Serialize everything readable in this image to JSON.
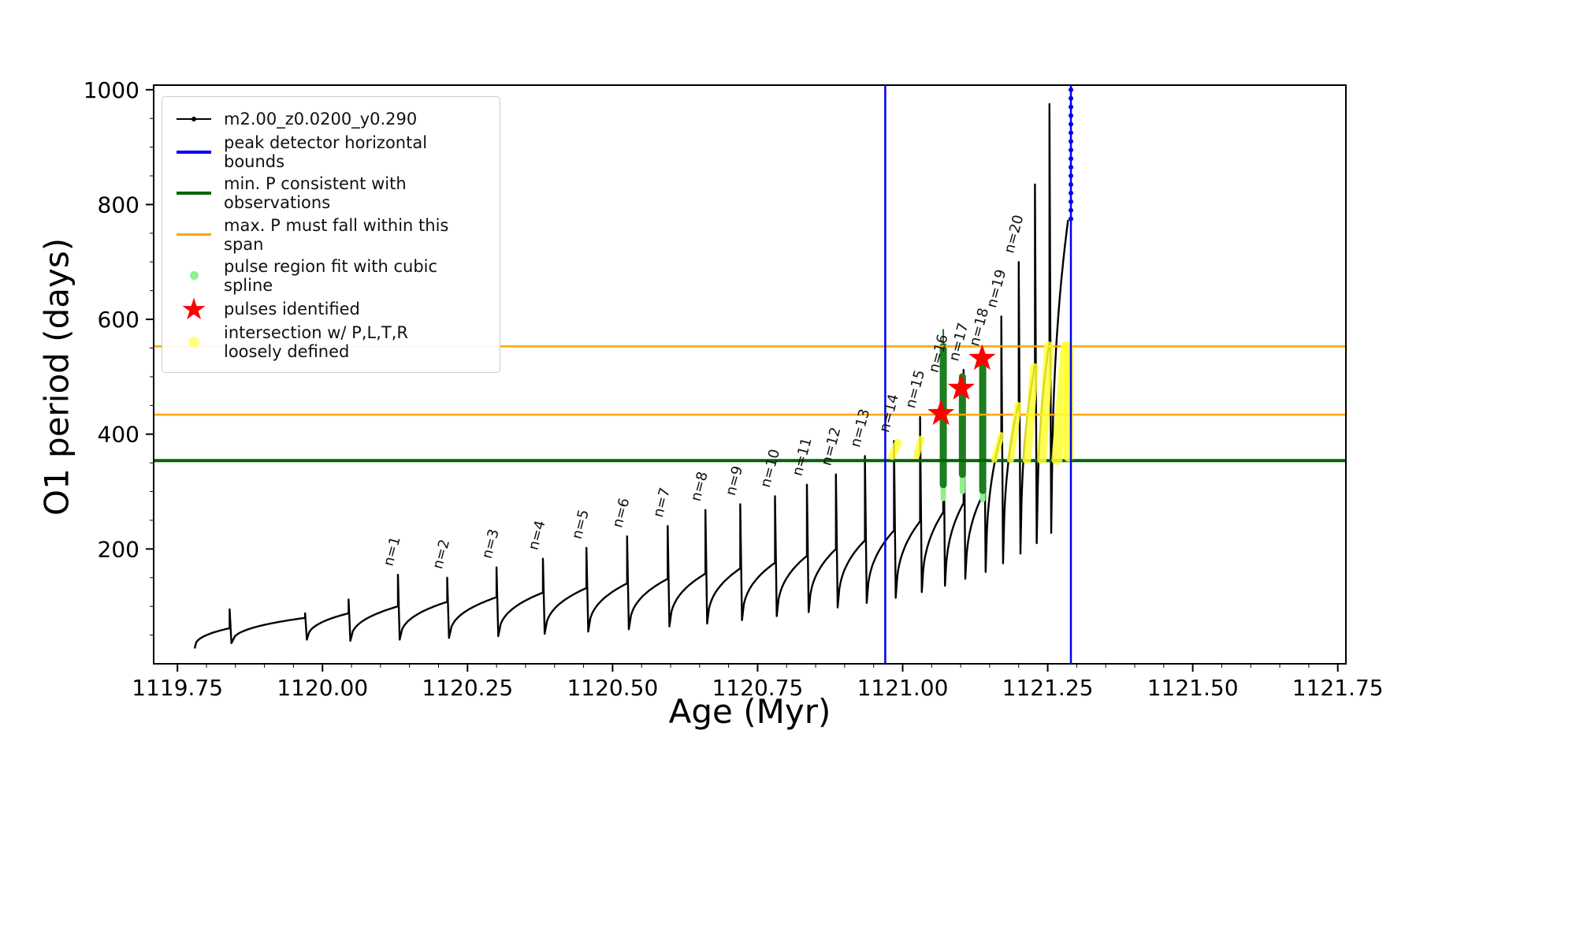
{
  "chart_data": {
    "type": "line",
    "title": "",
    "xlabel": "Age (Myr)",
    "ylabel": "O1 period (days)",
    "xlim": [
      1119.709,
      1121.764
    ],
    "ylim": [
      0,
      1008
    ],
    "xtick_values": [
      1119.75,
      1120.0,
      1120.25,
      1120.5,
      1120.75,
      1121.0,
      1121.25,
      1121.5,
      1121.75
    ],
    "xtick_labels": [
      "1119.75",
      "1120.00",
      "1120.25",
      "1120.50",
      "1120.75",
      "1121.00",
      "1121.25",
      "1121.50",
      "1121.75"
    ],
    "ytick_values": [
      200,
      400,
      600,
      800,
      1000
    ],
    "ytick_labels": [
      "200",
      "400",
      "600",
      "800",
      "1000"
    ],
    "x_minor_step": 0.05,
    "y_minor_step": 50,
    "grid": false,
    "legend_position": "upper left",
    "colors": {
      "track": "#000000",
      "peak_bounds": "#0000ee",
      "min_p_line": "#006400",
      "max_p_span": "#ffa500",
      "spline_fit_light": "#90ee90",
      "spline_fit_dense": "#1e7d1e",
      "pulse_star": "#ff0000",
      "intersection": "#ffff33"
    },
    "series": {
      "name": "m2.00_z0.0200_y0.290",
      "track_start": {
        "x": 1119.78,
        "y": 28
      },
      "teeth": [
        {
          "x": 1119.84,
          "y0": 28,
          "y1": 62,
          "peak": 95
        },
        {
          "x": 1119.97,
          "y0": 36,
          "y1": 80,
          "peak": 88
        },
        {
          "x": 1120.045,
          "y0": 42,
          "y1": 88,
          "peak": 112
        },
        {
          "x": 1120.13,
          "y0": 40,
          "y1": 100,
          "peak": 155,
          "label": "n=1"
        },
        {
          "x": 1120.215,
          "y0": 42,
          "y1": 108,
          "peak": 150,
          "label": "n=2"
        },
        {
          "x": 1120.3,
          "y0": 45,
          "y1": 116,
          "peak": 168,
          "label": "n=3"
        },
        {
          "x": 1120.38,
          "y0": 48,
          "y1": 124,
          "peak": 183,
          "label": "n=4"
        },
        {
          "x": 1120.455,
          "y0": 52,
          "y1": 132,
          "peak": 202,
          "label": "n=5"
        },
        {
          "x": 1120.525,
          "y0": 56,
          "y1": 140,
          "peak": 222,
          "label": "n=6"
        },
        {
          "x": 1120.595,
          "y0": 60,
          "y1": 148,
          "peak": 240,
          "label": "n=7"
        },
        {
          "x": 1120.66,
          "y0": 65,
          "y1": 157,
          "peak": 268,
          "label": "n=8"
        },
        {
          "x": 1120.72,
          "y0": 70,
          "y1": 166,
          "peak": 278,
          "label": "n=9"
        },
        {
          "x": 1120.78,
          "y0": 76,
          "y1": 176,
          "peak": 292,
          "label": "n=10"
        },
        {
          "x": 1120.835,
          "y0": 83,
          "y1": 188,
          "peak": 312,
          "label": "n=11"
        },
        {
          "x": 1120.885,
          "y0": 90,
          "y1": 200,
          "peak": 330,
          "label": "n=12"
        },
        {
          "x": 1120.935,
          "y0": 98,
          "y1": 215,
          "peak": 362,
          "label": "n=13"
        },
        {
          "x": 1120.985,
          "y0": 106,
          "y1": 232,
          "peak": 388,
          "label": "n=14"
        },
        {
          "x": 1121.03,
          "y0": 115,
          "y1": 248,
          "peak": 430,
          "label": "n=15"
        },
        {
          "x": 1121.07,
          "y0": 125,
          "y1": 264,
          "peak": 492,
          "label": "n=16"
        },
        {
          "x": 1121.105,
          "y0": 136,
          "y1": 280,
          "peak": 512,
          "label": "n=17"
        },
        {
          "x": 1121.14,
          "y0": 148,
          "y1": 298,
          "peak": 538,
          "label": "n=18"
        },
        {
          "x": 1121.17,
          "y0": 160,
          "y1": 400,
          "peak": 605,
          "label": "n=19"
        },
        {
          "x": 1121.2,
          "y0": 175,
          "y1": 455,
          "peak": 700,
          "label": "n=20"
        },
        {
          "x": 1121.228,
          "y0": 192,
          "y1": 520,
          "peak": 835
        },
        {
          "x": 1121.253,
          "y0": 210,
          "y1": 560,
          "peak": 975
        },
        {
          "x": 1121.285,
          "y0": 228,
          "y1": 772,
          "peak": 772
        }
      ]
    },
    "overlays": {
      "blue_vlines": [
        1120.97,
        1121.29
      ],
      "blue_dot_column": {
        "x": 1121.29,
        "y_from": 775,
        "y_to": 1000,
        "step": 15
      },
      "green_hline": 354,
      "orange_hlines": [
        434,
        553
      ],
      "dark_green_columns": [
        {
          "x": 1121.07,
          "y1": 312,
          "y2": 553,
          "w": 9
        },
        {
          "x": 1121.07,
          "y1": 553,
          "y2": 582,
          "w": 2
        },
        {
          "x": 1121.103,
          "y1": 330,
          "y2": 500,
          "w": 9
        },
        {
          "x": 1121.138,
          "y1": 302,
          "y2": 535,
          "w": 9
        }
      ],
      "light_green_columns": [
        {
          "x": 1121.07,
          "y1": 288,
          "y2": 342,
          "w": 7
        },
        {
          "x": 1121.103,
          "y1": 300,
          "y2": 348,
          "w": 7
        },
        {
          "x": 1121.138,
          "y1": 286,
          "y2": 335,
          "w": 7
        }
      ],
      "yellow_segments": [
        {
          "x1": 1120.982,
          "y1": 362,
          "x2": 1120.992,
          "y2": 385,
          "w": 10
        },
        {
          "x1": 1121.024,
          "y1": 362,
          "x2": 1121.032,
          "y2": 392,
          "w": 8
        },
        {
          "x1": 1121.158,
          "y1": 356,
          "x2": 1121.17,
          "y2": 398,
          "w": 8
        },
        {
          "x1": 1121.186,
          "y1": 356,
          "x2": 1121.199,
          "y2": 450,
          "w": 9
        },
        {
          "x1": 1121.214,
          "y1": 356,
          "x2": 1121.227,
          "y2": 516,
          "w": 11
        },
        {
          "x1": 1121.24,
          "y1": 356,
          "x2": 1121.252,
          "y2": 553,
          "w": 12
        },
        {
          "x1": 1121.266,
          "y1": 356,
          "x2": 1121.282,
          "y2": 553,
          "w": 14
        },
        {
          "x1": 1121.286,
          "y1": 360,
          "x2": 1121.286,
          "y2": 550,
          "w": 12
        }
      ],
      "pulse_stars": [
        {
          "x": 1121.066,
          "y": 436
        },
        {
          "x": 1121.101,
          "y": 480
        },
        {
          "x": 1121.137,
          "y": 532
        }
      ]
    },
    "legend": {
      "entries": [
        {
          "symbol": "black-line-with-dot",
          "label": "m2.00_z0.0200_y0.290"
        },
        {
          "symbol": "blue-line",
          "label": "peak detector horizontal bounds"
        },
        {
          "symbol": "green-line",
          "label": "min. P consistent with observations"
        },
        {
          "symbol": "orange-line",
          "label": "max. P must fall within this span"
        },
        {
          "symbol": "lightgreen-dot",
          "label": "pulse region fit with cubic spline"
        },
        {
          "symbol": "red-star",
          "label": "pulses identified"
        },
        {
          "symbol": "yellow-dot",
          "label": "intersection w/ P,L,T,R\nloosely defined"
        }
      ]
    }
  }
}
